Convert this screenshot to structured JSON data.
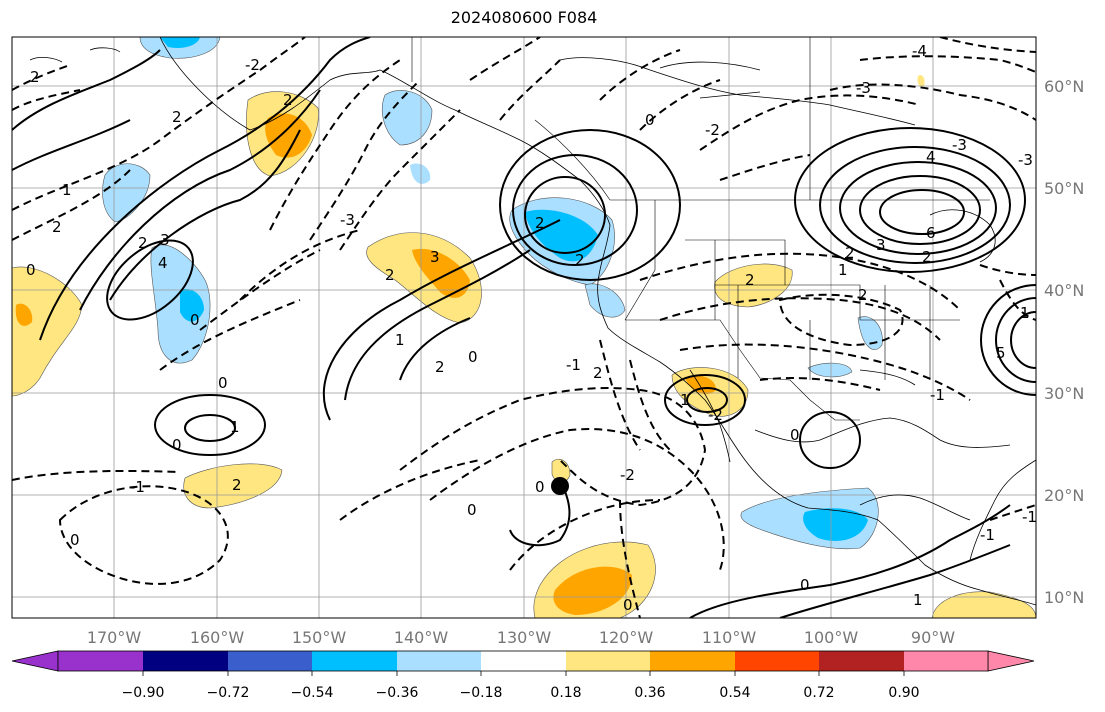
{
  "title": "2024080600 F084",
  "map": {
    "projection": "mercator",
    "lon_range": [
      -180,
      -80
    ],
    "lat_range": [
      8,
      65
    ],
    "lon_labels": [
      "170°W",
      "160°W",
      "150°W",
      "140°W",
      "130°W",
      "120°W",
      "110°W",
      "100°W",
      "90°W"
    ],
    "lat_labels": [
      "60°N",
      "50°N",
      "40°N",
      "30°N",
      "20°N",
      "10°N"
    ],
    "contour_labels": [
      "2",
      "2",
      "1",
      "2",
      "0",
      "0",
      "3",
      "2",
      "4",
      "2",
      "0",
      "-1",
      "2",
      "-2",
      "2",
      "0",
      "1",
      "2",
      "3",
      "-3",
      "2",
      "2",
      "0",
      "1",
      "0",
      "2",
      "-2",
      "0",
      "-1",
      "0",
      "1",
      "-2",
      "-3",
      "-3",
      "-4",
      "0",
      "1",
      "2",
      "6",
      "2",
      "0",
      "3",
      "5",
      "2",
      "4",
      "-2",
      "-1",
      "2",
      "-3",
      "0",
      "1",
      "1",
      "0",
      "-1",
      "-1"
    ],
    "marker": "black-dot"
  },
  "colorbar": {
    "ticks": [
      "−0.90",
      "−0.72",
      "−0.54",
      "−0.36",
      "−0.18",
      "0.18",
      "0.36",
      "0.54",
      "0.72",
      "0.90"
    ],
    "colors": [
      "#9932cc",
      "#000080",
      "#3a5fcd",
      "#00bfff",
      "#aadfff",
      "#ffffff",
      "#ffe680",
      "#ffa500",
      "#ff4500",
      "#b22222",
      "#ff88aa"
    ]
  }
}
